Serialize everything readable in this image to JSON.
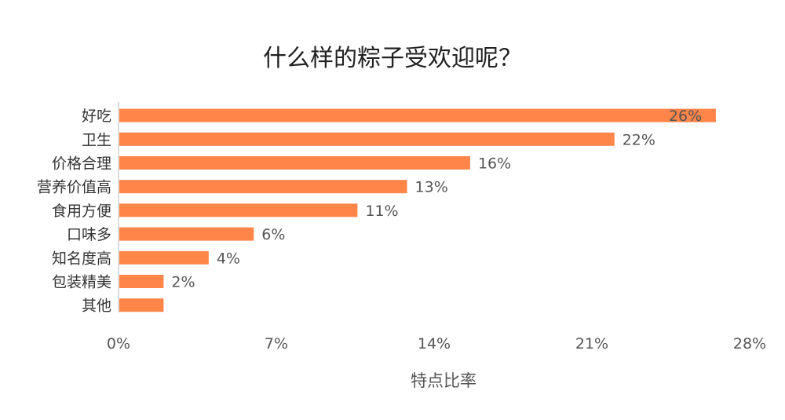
{
  "chart_data": {
    "type": "bar",
    "orientation": "horizontal",
    "title": "什么样的粽子受欢迎呢？",
    "xlabel": "特点比率",
    "ylabel": "",
    "categories": [
      "好吃",
      "卫生",
      "价格合理",
      "营养价值高",
      "食用方便",
      "口味多",
      "知名度高",
      "包装精美",
      "其他"
    ],
    "values": [
      26.5,
      22,
      15.6,
      12.8,
      10.6,
      6,
      4,
      2,
      2
    ],
    "data_labels": [
      "26%",
      "22%",
      "16%",
      "13%",
      "11%",
      "6%",
      "4%",
      "2%",
      ""
    ],
    "xlim": [
      0,
      28
    ],
    "xticks": [
      0,
      7,
      14,
      21,
      28
    ],
    "xtick_labels": [
      "0%",
      "7%",
      "14%",
      "21%",
      "28%"
    ],
    "grid": false,
    "legend": "none",
    "bar_color": "#FF8549"
  }
}
